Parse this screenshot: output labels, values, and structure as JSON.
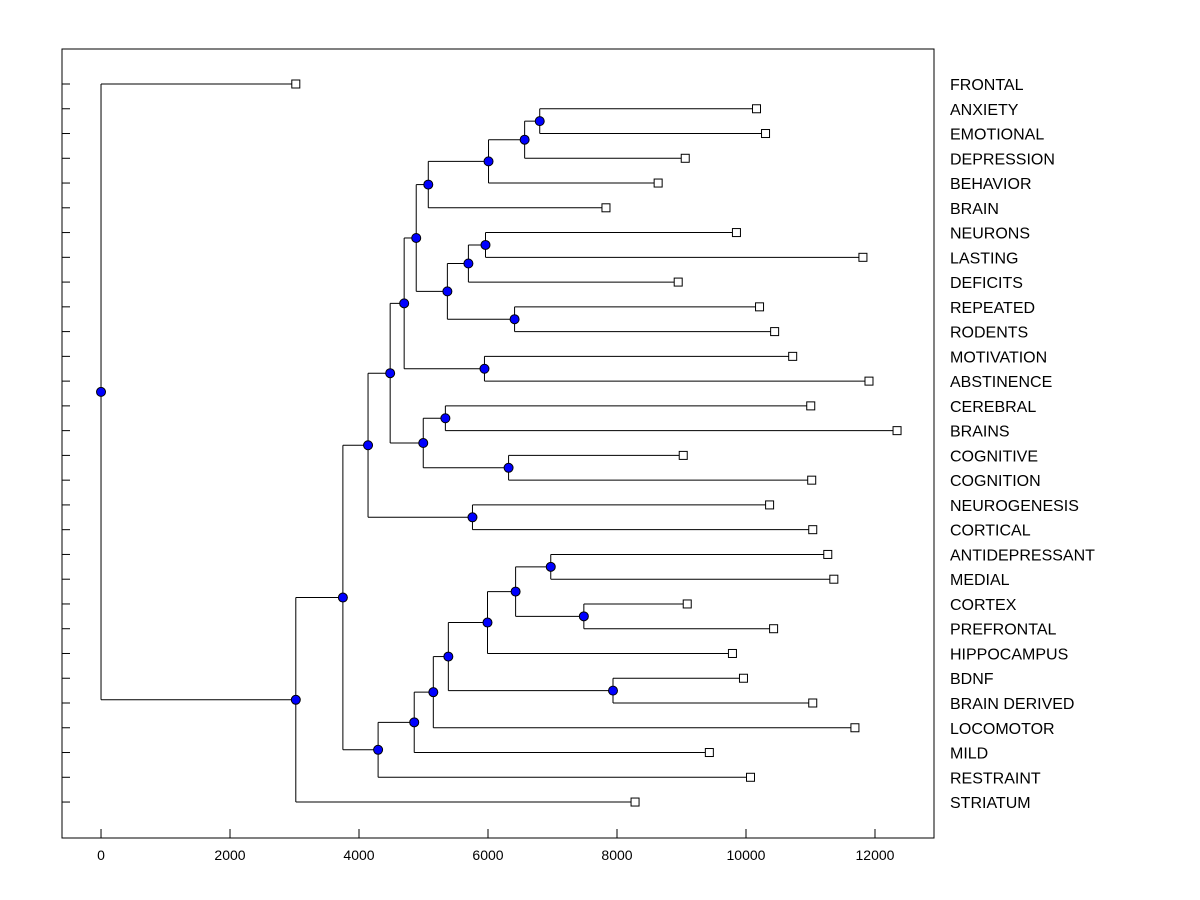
{
  "chart_data": {
    "type": "dendrogram",
    "orientation": "horizontal",
    "xlim": [
      -605,
      12915
    ],
    "xticks": [
      0,
      2000,
      4000,
      6000,
      8000,
      10000,
      12000
    ],
    "xtick_labels": [
      "0",
      "2000",
      "4000",
      "6000",
      "8000",
      "10000",
      "12000"
    ],
    "node_color": "#0000ff",
    "line_color": "#000000",
    "tree": {
      "height": 0,
      "children": [
        {
          "label": "FRONTAL",
          "height": 3020
        },
        {
          "height": 3020,
          "children": [
            {
              "height": 3750,
              "children": [
                {
                  "height": 4140,
                  "children": [
                    {
                      "height": 4483,
                      "children": [
                        {
                          "height": 4700,
                          "children": [
                            {
                              "height": 4887,
                              "children": [
                                {
                                  "height": 5074,
                                  "children": [
                                    {
                                      "height": 6008,
                                      "children": [
                                        {
                                          "height": 6568,
                                          "children": [
                                            {
                                              "height": 6802,
                                              "children": [
                                                {
                                                  "label": "ANXIETY",
                                                  "height": 10163
                                                },
                                                {
                                                  "label": "EMOTIONAL",
                                                  "height": 10303
                                                }
                                              ]
                                            },
                                            {
                                              "label": "DEPRESSION",
                                              "height": 9058
                                            }
                                          ]
                                        },
                                        {
                                          "label": "BEHAVIOR",
                                          "height": 8638
                                        }
                                      ]
                                    },
                                    {
                                      "label": "BRAIN",
                                      "height": 7829
                                    }
                                  ]
                                },
                                {
                                  "height": 5370,
                                  "children": [
                                    {
                                      "height": 5696,
                                      "children": [
                                        {
                                          "height": 5961,
                                          "children": [
                                            {
                                              "label": "NEURONS",
                                              "height": 9852
                                            },
                                            {
                                              "label": "LASTING",
                                              "height": 11813
                                            }
                                          ]
                                        },
                                        {
                                          "label": "DEFICITS",
                                          "height": 8949
                                        }
                                      ]
                                    },
                                    {
                                      "height": 6412,
                                      "children": [
                                        {
                                          "label": "REPEATED",
                                          "height": 10210
                                        },
                                        {
                                          "label": "RODENTS",
                                          "height": 10444
                                        }
                                      ]
                                    }
                                  ]
                                }
                              ]
                            },
                            {
                              "height": 5945,
                              "children": [
                                {
                                  "label": "MOTIVATION",
                                  "height": 10724
                                },
                                {
                                  "label": "ABSTINENCE",
                                  "height": 11907
                                }
                              ]
                            }
                          ]
                        },
                        {
                          "height": 4996,
                          "children": [
                            {
                              "height": 5339,
                              "children": [
                                {
                                  "label": "CEREBRAL",
                                  "height": 11004
                                },
                                {
                                  "label": "BRAINS",
                                  "height": 12342
                                }
                              ]
                            },
                            {
                              "height": 6319,
                              "children": [
                                {
                                  "label": "COGNITIVE",
                                  "height": 9027
                                },
                                {
                                  "label": "COGNITION",
                                  "height": 11019
                                }
                              ]
                            }
                          ]
                        }
                      ]
                    },
                    {
                      "height": 5759,
                      "children": [
                        {
                          "label": "NEUROGENESIS",
                          "height": 10366
                        },
                        {
                          "label": "CORTICAL",
                          "height": 11035
                        }
                      ]
                    }
                  ]
                },
                {
                  "height": 4296,
                  "children": [
                    {
                      "height": 4856,
                      "children": [
                        {
                          "height": 5152,
                          "children": [
                            {
                              "height": 5385,
                              "children": [
                                {
                                  "height": 5992,
                                  "children": [
                                    {
                                      "height": 6428,
                                      "children": [
                                        {
                                          "height": 6973,
                                          "children": [
                                            {
                                              "label": "ANTIDEPRESSANT",
                                              "height": 11268
                                            },
                                            {
                                              "label": "MEDIAL",
                                              "height": 11362
                                            }
                                          ]
                                        },
                                        {
                                          "height": 7486,
                                          "children": [
                                            {
                                              "label": "CORTEX",
                                              "height": 9089
                                            },
                                            {
                                              "label": "PREFRONTAL",
                                              "height": 10428
                                            }
                                          ]
                                        }
                                      ]
                                    },
                                    {
                                      "label": "HIPPOCAMPUS",
                                      "height": 9790
                                    }
                                  ]
                                },
                                {
                                  "height": 7938,
                                  "children": [
                                    {
                                      "label": "BDNF",
                                      "height": 9961
                                    },
                                    {
                                      "label": "BRAIN DERIVED",
                                      "height": 11035
                                    }
                                  ]
                                }
                              ]
                            },
                            {
                              "label": "LOCOMOTOR",
                              "height": 11689
                            }
                          ]
                        },
                        {
                          "label": "MILD",
                          "height": 9432
                        }
                      ]
                    },
                    {
                      "label": "RESTRAINT",
                      "height": 10070
                    }
                  ]
                }
              ]
            },
            {
              "label": "STRIATUM",
              "height": 8280
            }
          ]
        }
      ]
    }
  }
}
